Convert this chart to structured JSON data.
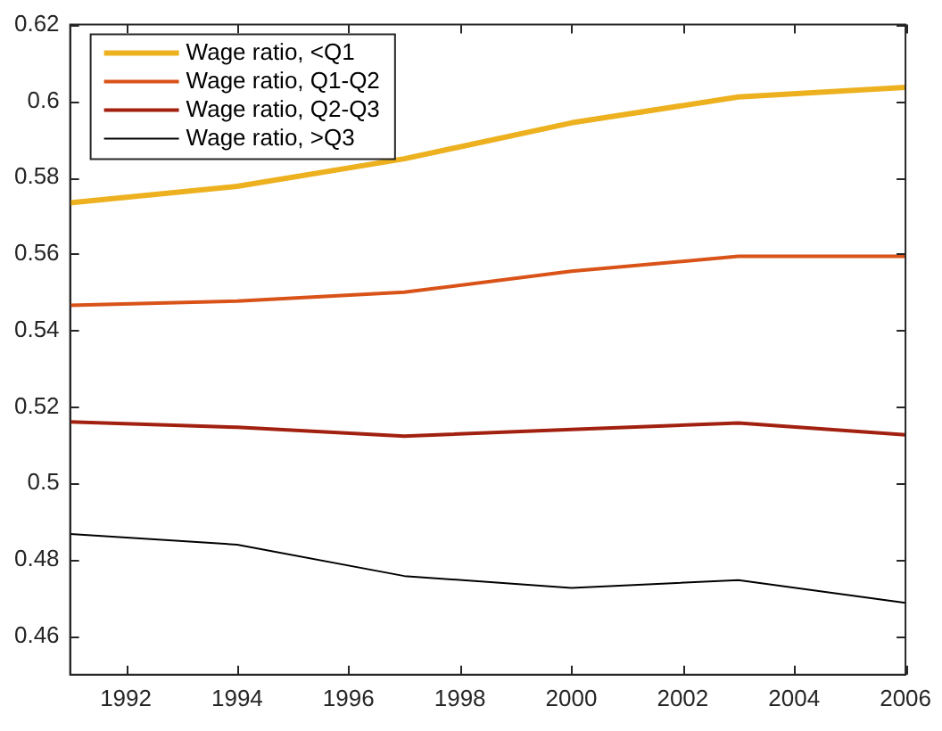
{
  "chart_data": {
    "type": "line",
    "x": [
      1991,
      1994,
      1997,
      2000,
      2003,
      2006
    ],
    "series": [
      {
        "name": "Wage ratio, <Q1",
        "color": "#edb120",
        "values": [
          0.5734,
          0.5777,
          0.5849,
          0.5943,
          0.6011,
          0.6036
        ]
      },
      {
        "name": "Wage ratio, Q1-Q2",
        "color": "#d95319",
        "values": [
          0.5466,
          0.5477,
          0.55,
          0.5555,
          0.5594,
          0.5594
        ]
      },
      {
        "name": "Wage ratio, Q2-Q3",
        "color": "#a2200f",
        "values": [
          0.5161,
          0.5147,
          0.5124,
          0.5141,
          0.5158,
          0.5127
        ]
      },
      {
        "name": "Wage ratio, >Q3",
        "color": "#000000",
        "values": [
          0.4868,
          0.484,
          0.4758,
          0.4727,
          0.4747,
          0.4688
        ]
      }
    ],
    "xlim": [
      1991,
      2006
    ],
    "xticks": [
      1992,
      1994,
      1996,
      1998,
      2000,
      2002,
      2004,
      2006
    ],
    "ylim": [
      0.45,
      0.62
    ],
    "yticks": [
      0.46,
      0.48,
      0.5,
      0.52,
      0.54,
      0.56,
      0.58,
      0.6,
      0.62
    ],
    "grid": false,
    "legend": "top left",
    "marker": "none",
    "line_style": "solid"
  }
}
